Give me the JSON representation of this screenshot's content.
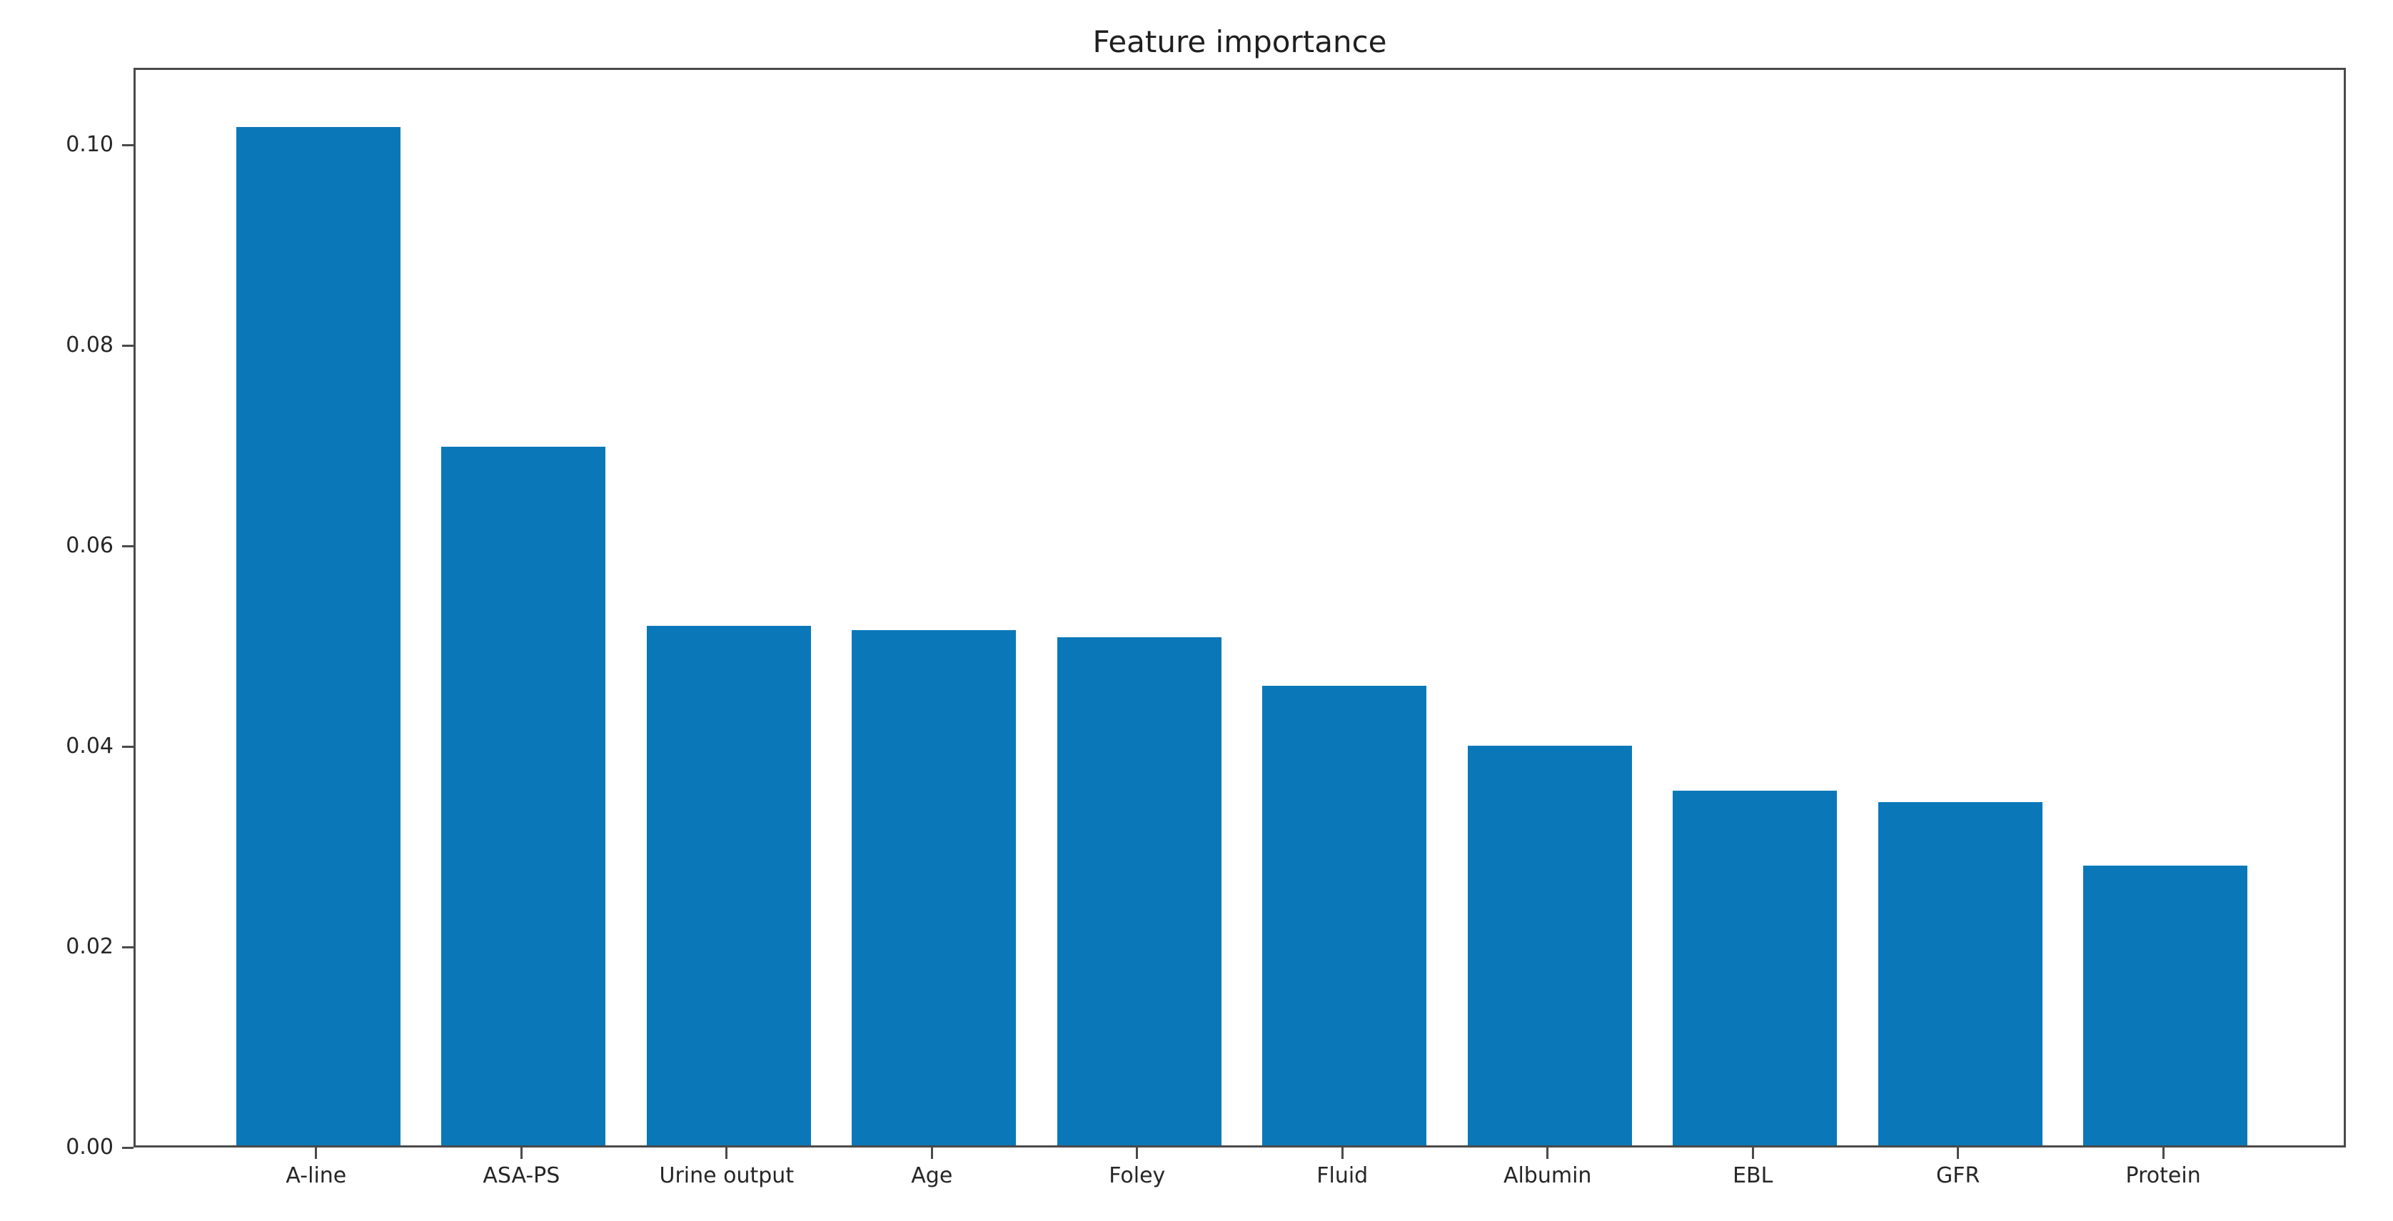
{
  "chart_data": {
    "type": "bar",
    "title": "Feature importance",
    "categories": [
      "A-line",
      "ASA-PS",
      "Urine output",
      "Age",
      "Foley",
      "Fluid",
      "Albumin",
      "EBL",
      "GFR",
      "Protein"
    ],
    "values": [
      0.102,
      0.07,
      0.052,
      0.0516,
      0.0509,
      0.046,
      0.04,
      0.0355,
      0.0344,
      0.028
    ],
    "xlabel": "",
    "ylabel": "",
    "ytick_labels": [
      "0.00",
      "0.02",
      "0.04",
      "0.06",
      "0.08",
      "0.10"
    ],
    "yticks": [
      0.0,
      0.02,
      0.04,
      0.06,
      0.08,
      0.1
    ],
    "ylim": [
      0,
      0.1077
    ],
    "grid": false,
    "legend_position": "none",
    "bar_color": "#0a78b8",
    "spine_color": "#4a4a4a",
    "text_color": "#262626",
    "background_color": "#ffffff"
  }
}
